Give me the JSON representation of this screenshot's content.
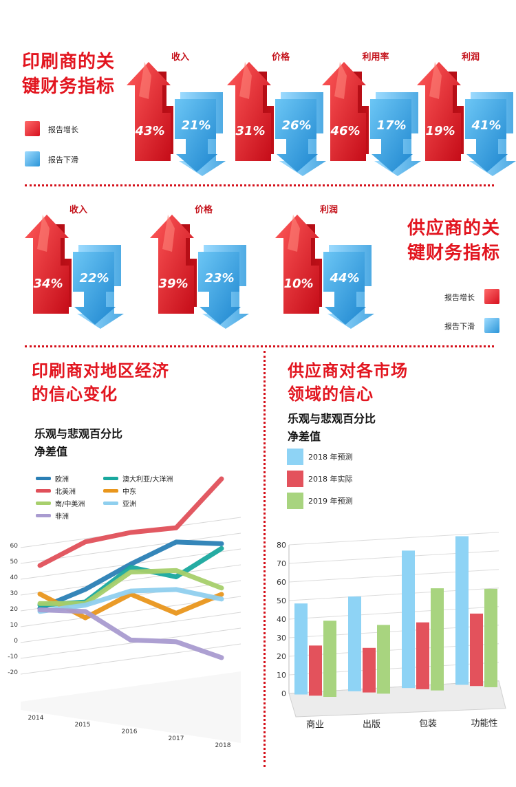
{
  "printer_section": {
    "title_line1": "印刷商的关",
    "title_line2": "键财务指标",
    "legend_up": "报告增长",
    "legend_down": "报告下滑",
    "metrics": [
      {
        "label": "收入",
        "up": "43%",
        "down": "21%"
      },
      {
        "label": "价格",
        "up": "31%",
        "down": "26%"
      },
      {
        "label": "利用率",
        "up": "46%",
        "down": "17%"
      },
      {
        "label": "利润",
        "up": "19%",
        "down": "41%"
      }
    ]
  },
  "supplier_section": {
    "title_line1": "供应商的关",
    "title_line2": "键财务指标",
    "legend_up": "报告增长",
    "legend_down": "报告下滑",
    "metrics": [
      {
        "label": "收入",
        "up": "34%",
        "down": "22%"
      },
      {
        "label": "价格",
        "up": "39%",
        "down": "23%"
      },
      {
        "label": "利润",
        "up": "10%",
        "down": "44%"
      }
    ]
  },
  "colors": {
    "accent_red": "#e2151f",
    "up_red": "#d6101e",
    "down_blue": "#2b95d8"
  },
  "chart_data": [
    {
      "type": "line",
      "title": "印刷商对地区经济的信心变化",
      "subtitle": "乐观与悲观百分比净差值",
      "title_line1": "印刷商对地区经济",
      "title_line2": "的信心变化",
      "subtitle_line1": "乐观与悲观百分比",
      "subtitle_line2": "净差值",
      "x": [
        "2014",
        "2015",
        "2016",
        "2017",
        "2018"
      ],
      "y_ticks": [
        "60",
        "50",
        "40",
        "30",
        "20",
        "10",
        "0",
        "-10",
        "-20"
      ],
      "ylim": [
        -20,
        60
      ],
      "legend": "top-left",
      "series": [
        {
          "name": "欧洲",
          "color": "#2a7fb5",
          "values": [
            20,
            28,
            40,
            50,
            45
          ]
        },
        {
          "name": "澳大利亚/大洋洲",
          "color": "#19a89e",
          "values": [
            22,
            20,
            38,
            28,
            42
          ]
        },
        {
          "name": "北美洲",
          "color": "#e0505a",
          "values": [
            47,
            58,
            60,
            59,
            86
          ]
        },
        {
          "name": "中东",
          "color": "#e9961c",
          "values": [
            29,
            10,
            21,
            5,
            13
          ]
        },
        {
          "name": "南/中美洲",
          "color": "#a7cf6c",
          "values": [
            23,
            19,
            35,
            32,
            17
          ]
        },
        {
          "name": "亚洲",
          "color": "#8fcfee",
          "values": [
            18,
            18,
            23,
            20,
            10
          ]
        },
        {
          "name": "非洲",
          "color": "#a99bd0",
          "values": [
            19,
            14,
            -8,
            -13,
            -27
          ]
        }
      ]
    },
    {
      "type": "bar",
      "title": "供应商对各市场领域的信心",
      "subtitle": "乐观与悲观百分比净差值",
      "title_line1": "供应商对各市场",
      "title_line2": "领域的信心",
      "subtitle_line1": "乐观与悲观百分比",
      "subtitle_line2": "净差值",
      "categories": [
        "商业",
        "出版",
        "包装",
        "功能性"
      ],
      "y_ticks": [
        "80",
        "70",
        "60",
        "50",
        "40",
        "30",
        "20",
        "10",
        "0"
      ],
      "ylim": [
        0,
        80
      ],
      "legend": "top-left",
      "series": [
        {
          "name": "2018 年预测",
          "color": "#8ed3f5",
          "values": [
            49,
            51,
            74,
            80
          ]
        },
        {
          "name": "2018 年实际",
          "color": "#e3525c",
          "values": [
            27,
            24,
            36,
            39
          ]
        },
        {
          "name": "2019 年预测",
          "color": "#a8d47f",
          "values": [
            41,
            37,
            55,
            53
          ]
        }
      ]
    }
  ]
}
